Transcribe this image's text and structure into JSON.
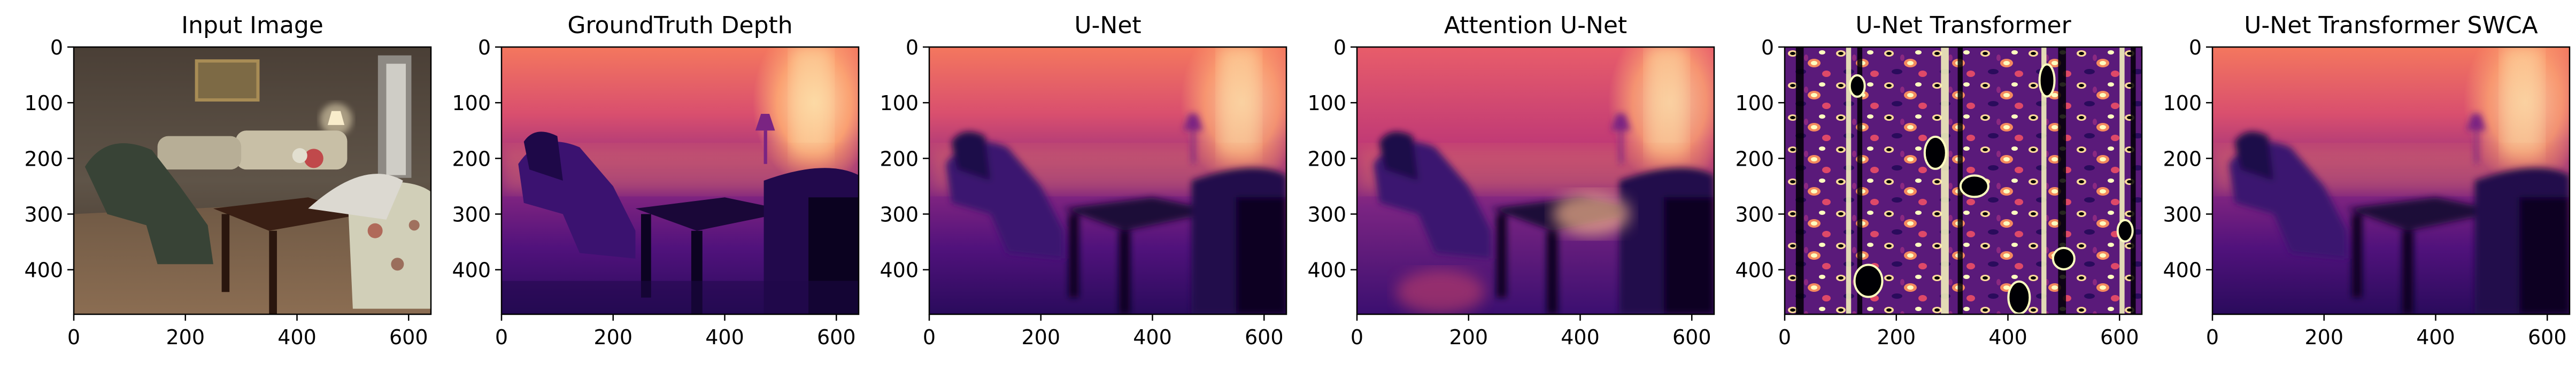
{
  "figure": {
    "panels": [
      {
        "id": "input",
        "title": "Input Image",
        "kind": "rgb"
      },
      {
        "id": "gt",
        "title": "GroundTruth Depth",
        "kind": "depth"
      },
      {
        "id": "unet",
        "title": "U-Net",
        "kind": "depth"
      },
      {
        "id": "attn",
        "title": "Attention U-Net",
        "kind": "depth"
      },
      {
        "id": "unet_tr",
        "title": "U-Net Transformer",
        "kind": "noise"
      },
      {
        "id": "unet_tr_swca",
        "title": "U-Net Transformer SWCA",
        "kind": "depth"
      }
    ],
    "axes": {
      "x_ticks": [
        "0",
        "200",
        "400",
        "600"
      ],
      "x_tick_values": [
        0,
        200,
        400,
        600
      ],
      "y_ticks": [
        "0",
        "100",
        "200",
        "300",
        "400"
      ],
      "y_tick_values": [
        0,
        100,
        200,
        300,
        400
      ],
      "x_range": [
        0,
        640
      ],
      "y_range": [
        0,
        480
      ]
    },
    "colors": {
      "magma_dark": "#000004",
      "magma_purple": "#3b0f70",
      "magma_violet": "#8c2981",
      "magma_pink": "#de4968",
      "magma_orange": "#fe9f6d",
      "magma_light": "#fcfdbf"
    }
  }
}
